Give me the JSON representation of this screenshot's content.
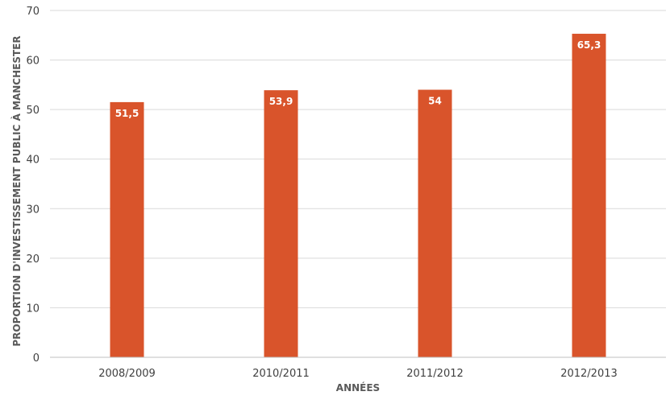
{
  "chart_data": {
    "type": "bar",
    "title": "",
    "xlabel": "ANNÉES",
    "ylabel": "PROPORTION D'INVESTISSEMENT PUBLIC À MANCHESTER",
    "categories": [
      "2008/2009",
      "2010/2011",
      "2011/2012",
      "2012/2013"
    ],
    "values": [
      51.5,
      53.9,
      54,
      65.3
    ],
    "value_labels": [
      "51,5",
      "53,9",
      "54",
      "65,3"
    ],
    "ylim": [
      0,
      70
    ],
    "yticks": [
      0,
      10,
      20,
      30,
      40,
      50,
      60,
      70
    ],
    "ytick_labels": [
      "0",
      "10",
      "20",
      "30",
      "40",
      "50",
      "60",
      "70"
    ],
    "grid": true,
    "legend": "none",
    "colors": {
      "bar": "#D9542B",
      "grid": "#d9d9d9",
      "axis": "#bfbfbf"
    }
  }
}
